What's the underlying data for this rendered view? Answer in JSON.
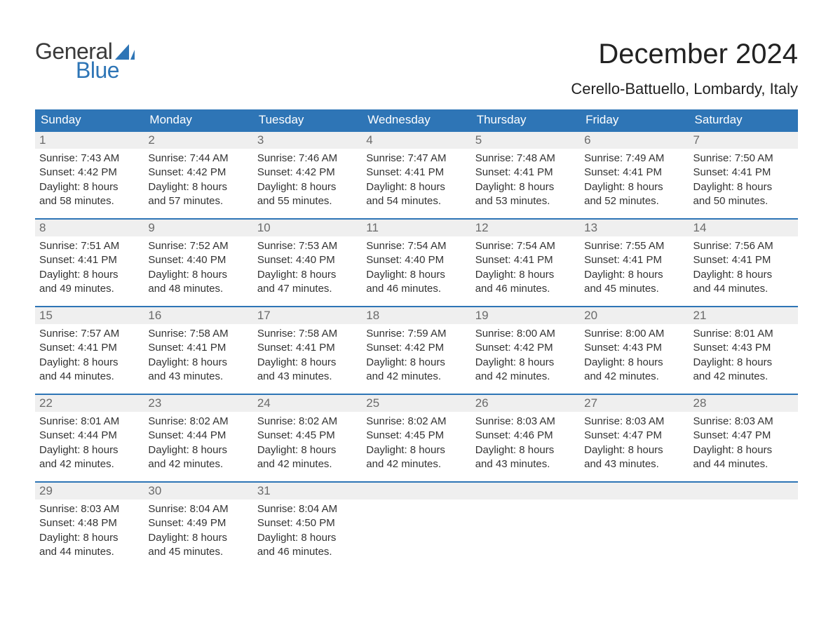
{
  "brand": {
    "name1": "General",
    "name2": "Blue",
    "sail_color": "#2e75b6"
  },
  "title": "December 2024",
  "location": "Cerello-Battuello, Lombardy, Italy",
  "colors": {
    "header_bg": "#2e75b6",
    "header_text": "#ffffff",
    "week_border": "#2e75b6",
    "daynum_bg": "#efefef",
    "daynum_text": "#6b6b6b",
    "body_text": "#333333",
    "background": "#ffffff"
  },
  "typography": {
    "title_fontsize": 40,
    "location_fontsize": 22,
    "dow_fontsize": 17,
    "daynum_fontsize": 17,
    "detail_fontsize": 15
  },
  "dow": [
    "Sunday",
    "Monday",
    "Tuesday",
    "Wednesday",
    "Thursday",
    "Friday",
    "Saturday"
  ],
  "weeks": [
    [
      {
        "n": "1",
        "sunrise": "Sunrise: 7:43 AM",
        "sunset": "Sunset: 4:42 PM",
        "d1": "Daylight: 8 hours",
        "d2": "and 58 minutes."
      },
      {
        "n": "2",
        "sunrise": "Sunrise: 7:44 AM",
        "sunset": "Sunset: 4:42 PM",
        "d1": "Daylight: 8 hours",
        "d2": "and 57 minutes."
      },
      {
        "n": "3",
        "sunrise": "Sunrise: 7:46 AM",
        "sunset": "Sunset: 4:42 PM",
        "d1": "Daylight: 8 hours",
        "d2": "and 55 minutes."
      },
      {
        "n": "4",
        "sunrise": "Sunrise: 7:47 AM",
        "sunset": "Sunset: 4:41 PM",
        "d1": "Daylight: 8 hours",
        "d2": "and 54 minutes."
      },
      {
        "n": "5",
        "sunrise": "Sunrise: 7:48 AM",
        "sunset": "Sunset: 4:41 PM",
        "d1": "Daylight: 8 hours",
        "d2": "and 53 minutes."
      },
      {
        "n": "6",
        "sunrise": "Sunrise: 7:49 AM",
        "sunset": "Sunset: 4:41 PM",
        "d1": "Daylight: 8 hours",
        "d2": "and 52 minutes."
      },
      {
        "n": "7",
        "sunrise": "Sunrise: 7:50 AM",
        "sunset": "Sunset: 4:41 PM",
        "d1": "Daylight: 8 hours",
        "d2": "and 50 minutes."
      }
    ],
    [
      {
        "n": "8",
        "sunrise": "Sunrise: 7:51 AM",
        "sunset": "Sunset: 4:41 PM",
        "d1": "Daylight: 8 hours",
        "d2": "and 49 minutes."
      },
      {
        "n": "9",
        "sunrise": "Sunrise: 7:52 AM",
        "sunset": "Sunset: 4:40 PM",
        "d1": "Daylight: 8 hours",
        "d2": "and 48 minutes."
      },
      {
        "n": "10",
        "sunrise": "Sunrise: 7:53 AM",
        "sunset": "Sunset: 4:40 PM",
        "d1": "Daylight: 8 hours",
        "d2": "and 47 minutes."
      },
      {
        "n": "11",
        "sunrise": "Sunrise: 7:54 AM",
        "sunset": "Sunset: 4:40 PM",
        "d1": "Daylight: 8 hours",
        "d2": "and 46 minutes."
      },
      {
        "n": "12",
        "sunrise": "Sunrise: 7:54 AM",
        "sunset": "Sunset: 4:41 PM",
        "d1": "Daylight: 8 hours",
        "d2": "and 46 minutes."
      },
      {
        "n": "13",
        "sunrise": "Sunrise: 7:55 AM",
        "sunset": "Sunset: 4:41 PM",
        "d1": "Daylight: 8 hours",
        "d2": "and 45 minutes."
      },
      {
        "n": "14",
        "sunrise": "Sunrise: 7:56 AM",
        "sunset": "Sunset: 4:41 PM",
        "d1": "Daylight: 8 hours",
        "d2": "and 44 minutes."
      }
    ],
    [
      {
        "n": "15",
        "sunrise": "Sunrise: 7:57 AM",
        "sunset": "Sunset: 4:41 PM",
        "d1": "Daylight: 8 hours",
        "d2": "and 44 minutes."
      },
      {
        "n": "16",
        "sunrise": "Sunrise: 7:58 AM",
        "sunset": "Sunset: 4:41 PM",
        "d1": "Daylight: 8 hours",
        "d2": "and 43 minutes."
      },
      {
        "n": "17",
        "sunrise": "Sunrise: 7:58 AM",
        "sunset": "Sunset: 4:41 PM",
        "d1": "Daylight: 8 hours",
        "d2": "and 43 minutes."
      },
      {
        "n": "18",
        "sunrise": "Sunrise: 7:59 AM",
        "sunset": "Sunset: 4:42 PM",
        "d1": "Daylight: 8 hours",
        "d2": "and 42 minutes."
      },
      {
        "n": "19",
        "sunrise": "Sunrise: 8:00 AM",
        "sunset": "Sunset: 4:42 PM",
        "d1": "Daylight: 8 hours",
        "d2": "and 42 minutes."
      },
      {
        "n": "20",
        "sunrise": "Sunrise: 8:00 AM",
        "sunset": "Sunset: 4:43 PM",
        "d1": "Daylight: 8 hours",
        "d2": "and 42 minutes."
      },
      {
        "n": "21",
        "sunrise": "Sunrise: 8:01 AM",
        "sunset": "Sunset: 4:43 PM",
        "d1": "Daylight: 8 hours",
        "d2": "and 42 minutes."
      }
    ],
    [
      {
        "n": "22",
        "sunrise": "Sunrise: 8:01 AM",
        "sunset": "Sunset: 4:44 PM",
        "d1": "Daylight: 8 hours",
        "d2": "and 42 minutes."
      },
      {
        "n": "23",
        "sunrise": "Sunrise: 8:02 AM",
        "sunset": "Sunset: 4:44 PM",
        "d1": "Daylight: 8 hours",
        "d2": "and 42 minutes."
      },
      {
        "n": "24",
        "sunrise": "Sunrise: 8:02 AM",
        "sunset": "Sunset: 4:45 PM",
        "d1": "Daylight: 8 hours",
        "d2": "and 42 minutes."
      },
      {
        "n": "25",
        "sunrise": "Sunrise: 8:02 AM",
        "sunset": "Sunset: 4:45 PM",
        "d1": "Daylight: 8 hours",
        "d2": "and 42 minutes."
      },
      {
        "n": "26",
        "sunrise": "Sunrise: 8:03 AM",
        "sunset": "Sunset: 4:46 PM",
        "d1": "Daylight: 8 hours",
        "d2": "and 43 minutes."
      },
      {
        "n": "27",
        "sunrise": "Sunrise: 8:03 AM",
        "sunset": "Sunset: 4:47 PM",
        "d1": "Daylight: 8 hours",
        "d2": "and 43 minutes."
      },
      {
        "n": "28",
        "sunrise": "Sunrise: 8:03 AM",
        "sunset": "Sunset: 4:47 PM",
        "d1": "Daylight: 8 hours",
        "d2": "and 44 minutes."
      }
    ],
    [
      {
        "n": "29",
        "sunrise": "Sunrise: 8:03 AM",
        "sunset": "Sunset: 4:48 PM",
        "d1": "Daylight: 8 hours",
        "d2": "and 44 minutes."
      },
      {
        "n": "30",
        "sunrise": "Sunrise: 8:04 AM",
        "sunset": "Sunset: 4:49 PM",
        "d1": "Daylight: 8 hours",
        "d2": "and 45 minutes."
      },
      {
        "n": "31",
        "sunrise": "Sunrise: 8:04 AM",
        "sunset": "Sunset: 4:50 PM",
        "d1": "Daylight: 8 hours",
        "d2": "and 46 minutes."
      },
      null,
      null,
      null,
      null
    ]
  ]
}
